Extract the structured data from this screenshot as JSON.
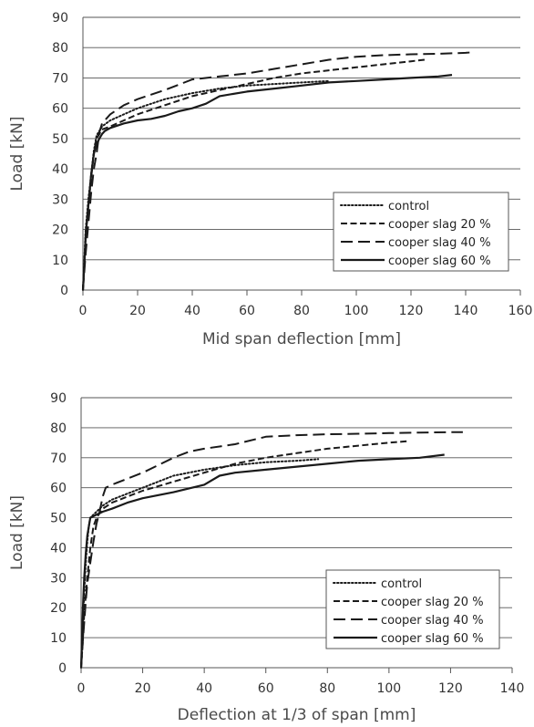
{
  "chart_data": [
    {
      "type": "line",
      "xlabel": "Mid span deflection [mm]",
      "ylabel": "Load [kN]",
      "xlim": [
        0,
        160
      ],
      "ylim": [
        0,
        90
      ],
      "xticks": [
        0,
        20,
        40,
        60,
        80,
        100,
        120,
        140,
        160
      ],
      "yticks": [
        0,
        10,
        20,
        30,
        40,
        50,
        60,
        70,
        80,
        90
      ],
      "grid": "horizontal",
      "legend_position": "bottom-right",
      "series": [
        {
          "name": "control",
          "style": "dotted",
          "x": [
            0,
            0.5,
            1,
            2,
            3,
            4,
            5,
            7,
            10,
            15,
            20,
            30,
            40,
            50,
            60,
            70,
            80,
            90
          ],
          "y": [
            0,
            10,
            20,
            30,
            38,
            46,
            51,
            54,
            56,
            58,
            60,
            63,
            65,
            66.5,
            67.5,
            68,
            68.5,
            69
          ]
        },
        {
          "name": "cooper slag 20 %",
          "style": "short-dash",
          "x": [
            0,
            0.5,
            1,
            2,
            3,
            4,
            5,
            7,
            10,
            15,
            20,
            30,
            40,
            50,
            60,
            70,
            80,
            90,
            100,
            110,
            120,
            125
          ],
          "y": [
            0,
            8,
            17,
            28,
            37,
            45,
            50,
            53,
            54,
            56,
            58,
            61,
            64,
            66,
            68,
            70,
            71.5,
            72.5,
            73.5,
            74.5,
            75.5,
            76
          ]
        },
        {
          "name": "cooper slag 40 %",
          "style": "long-dash",
          "x": [
            0,
            1,
            2,
            3,
            4,
            5,
            6,
            7,
            10,
            15,
            20,
            30,
            40,
            50,
            60,
            70,
            80,
            90,
            100,
            110,
            120,
            130,
            140,
            143
          ],
          "y": [
            0,
            12,
            22,
            32,
            40,
            45,
            52,
            55,
            58,
            61,
            63,
            66,
            69.5,
            70.5,
            71.5,
            73,
            74.5,
            76,
            77,
            77.5,
            77.8,
            78,
            78.3,
            78.5
          ]
        },
        {
          "name": "cooper slag 60 %",
          "style": "solid",
          "x": [
            0,
            0.5,
            1,
            2,
            3,
            4,
            5,
            6,
            7,
            8,
            10,
            15,
            20,
            25,
            30,
            35,
            40,
            45,
            50,
            60,
            70,
            80,
            90,
            100,
            110,
            120,
            130,
            135
          ],
          "y": [
            0,
            8,
            18,
            28,
            38,
            45,
            48,
            50,
            51.5,
            52.5,
            53.5,
            55,
            56,
            56.5,
            57.5,
            59,
            60,
            61.5,
            64,
            65.5,
            66.5,
            67.5,
            68.5,
            69,
            69.5,
            70,
            70.5,
            71
          ]
        }
      ]
    },
    {
      "type": "line",
      "xlabel": "Deflection at 1/3 of span [mm]",
      "ylabel": "Load [kN]",
      "xlim": [
        0,
        140
      ],
      "ylim": [
        0,
        90
      ],
      "xticks": [
        0,
        20,
        40,
        60,
        80,
        100,
        120,
        140
      ],
      "yticks": [
        0,
        10,
        20,
        30,
        40,
        50,
        60,
        70,
        80,
        90
      ],
      "grid": "horizontal",
      "legend_position": "bottom-right",
      "series": [
        {
          "name": "control",
          "style": "dotted",
          "x": [
            0,
            0.5,
            1,
            1.5,
            2,
            2.5,
            3,
            5,
            7,
            10,
            15,
            20,
            25,
            30,
            40,
            50,
            60,
            70,
            77
          ],
          "y": [
            0,
            10,
            25,
            35,
            42,
            47,
            50,
            52,
            54,
            56,
            58,
            60,
            62,
            64,
            66,
            67.5,
            68.5,
            69,
            69.5
          ]
        },
        {
          "name": "cooper slag 20 %",
          "style": "short-dash",
          "x": [
            0,
            0.5,
            1,
            2,
            3,
            4,
            5,
            7,
            10,
            15,
            20,
            30,
            40,
            50,
            60,
            70,
            80,
            90,
            100,
            106
          ],
          "y": [
            0,
            8,
            18,
            30,
            40,
            47,
            50,
            53,
            55,
            57,
            59,
            62,
            65,
            68,
            70,
            71.5,
            73,
            74,
            75,
            75.5
          ]
        },
        {
          "name": "cooper slag 40 %",
          "style": "long-dash",
          "x": [
            0,
            0.5,
            1,
            1.5,
            2,
            3,
            4,
            5,
            6,
            7,
            8,
            10,
            15,
            20,
            25,
            30,
            35,
            40,
            50,
            60,
            70,
            80,
            90,
            100,
            110,
            120,
            124
          ],
          "y": [
            0,
            8,
            15,
            22,
            28,
            35,
            42,
            48,
            52,
            57,
            60,
            61,
            63,
            65,
            67.5,
            70,
            72,
            73,
            74.5,
            77,
            77.5,
            77.8,
            78,
            78.2,
            78.4,
            78.5,
            78.5
          ]
        },
        {
          "name": "cooper slag 60 %",
          "style": "solid",
          "x": [
            0,
            0.3,
            0.6,
            1,
            1.5,
            2,
            3,
            5,
            7,
            10,
            15,
            20,
            30,
            40,
            45,
            50,
            60,
            70,
            80,
            90,
            100,
            110,
            118
          ],
          "y": [
            0,
            10,
            20,
            30,
            38,
            44,
            50,
            51,
            52,
            53,
            55,
            56.5,
            58.5,
            61,
            64,
            65,
            66,
            67,
            68,
            69,
            69.5,
            70,
            71
          ]
        }
      ]
    }
  ]
}
